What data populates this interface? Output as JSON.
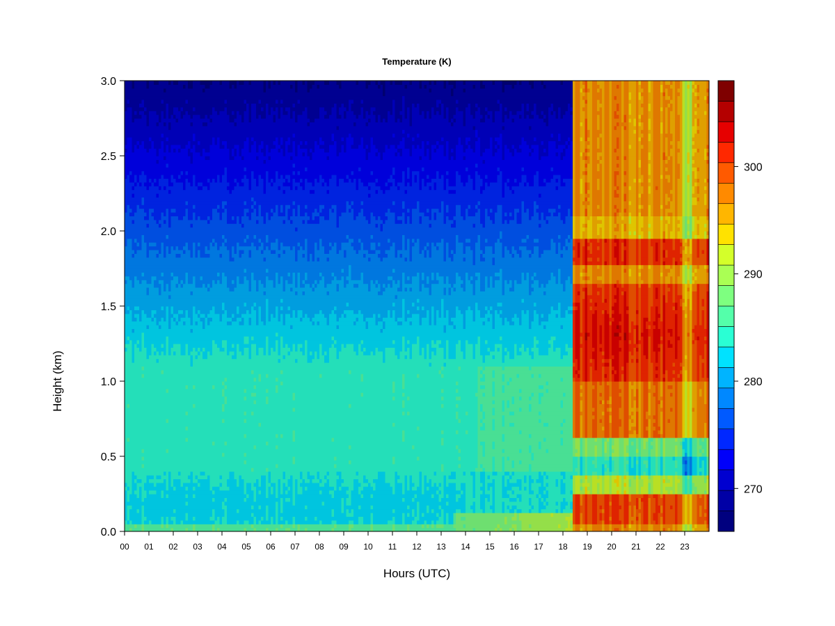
{
  "chart_data": {
    "type": "heatmap",
    "title": "Temperature (K)",
    "xlabel": "Hours (UTC)",
    "ylabel": "Height (km)",
    "xlim": [
      0,
      24
    ],
    "ylim": [
      0,
      3
    ],
    "x_ticks": [
      "00",
      "01",
      "02",
      "03",
      "04",
      "05",
      "06",
      "07",
      "08",
      "09",
      "10",
      "11",
      "12",
      "13",
      "14",
      "15",
      "16",
      "17",
      "18",
      "19",
      "20",
      "21",
      "22",
      "23"
    ],
    "y_ticks": [
      "0.0",
      "0.5",
      "1.0",
      "1.5",
      "2.0",
      "2.5",
      "3.0"
    ],
    "colorbar": {
      "range": [
        266,
        308
      ],
      "ticks": [
        270,
        280,
        290,
        300
      ],
      "level_step": 2,
      "colors": [
        "#00007F",
        "#0000A6",
        "#0000D0",
        "#0000FA",
        "#0028FF",
        "#005AFF",
        "#0088FF",
        "#00B4FF",
        "#00E2FF",
        "#2AFFD4",
        "#54FFAA",
        "#7EFF80",
        "#AAFF54",
        "#D4FF2A",
        "#FFE200",
        "#FFB600",
        "#FF8A00",
        "#FF5A00",
        "#FF2800",
        "#E60000",
        "#B40000",
        "#7F0000"
      ]
    },
    "regimes": [
      {
        "x_range": [
          0,
          18.45
        ],
        "description_levels": "cool profile: ~285 K near surface decreasing to ~268 K at 3 km"
      },
      {
        "x_range": [
          18.45,
          24
        ],
        "description_levels": "warm profile: ~298-305 K aloft, ~300 K near surface"
      }
    ]
  }
}
